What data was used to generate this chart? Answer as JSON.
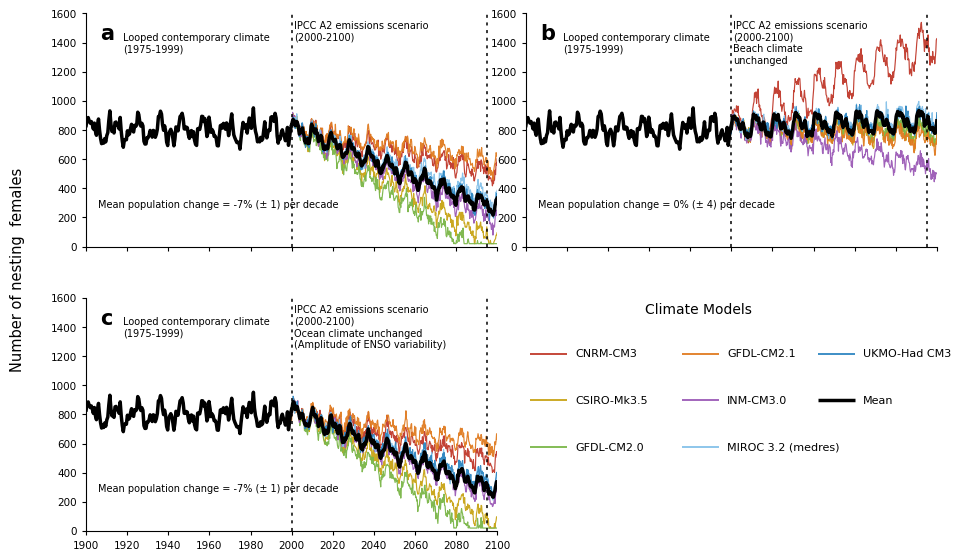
{
  "ylabel": "Number of nesting  females",
  "xlim": [
    1900,
    2100
  ],
  "ylim": [
    0,
    1600
  ],
  "yticks": [
    0,
    200,
    400,
    600,
    800,
    1000,
    1200,
    1400,
    1600
  ],
  "xticks": [
    1900,
    1920,
    1940,
    1960,
    1980,
    2000,
    2020,
    2040,
    2060,
    2080,
    2100
  ],
  "divider_year": 2000,
  "model_colors": {
    "CNRM-CM3": "#c0392b",
    "CSIRO-Mk3.5": "#c8a415",
    "GFDL-CM2.0": "#7ab648",
    "GFDL-CM2.1": "#e07b20",
    "INM-CM3.0": "#9b59b6",
    "MIROC 3.2 (medres)": "#85c1e9",
    "UKMO-Had CM3": "#2e86c1",
    "Mean": "#000000"
  },
  "panel_labels": [
    "a",
    "b",
    "c"
  ],
  "panel_annotations": [
    {
      "left_text": "Looped contemporary climate\n(1975-1999)",
      "right_text": "IPCC A2 emissions scenario\n(2000-2100)",
      "bottom_text": "Mean population change = -7% (± 1) per decade"
    },
    {
      "left_text": "Looped contemporary climate\n(1975-1999)",
      "right_text": "IPCC A2 emissions scenario\n(2000-2100)\nBeach climate\nunchanged",
      "bottom_text": "Mean population change = 0% (± 4) per decade"
    },
    {
      "left_text": "Looped contemporary climate\n(1975-1999)",
      "right_text": "IPCC A2 emissions scenario\n(2000-2100)\nOcean climate unchanged\n(Amplitude of ENSO variability)",
      "bottom_text": "Mean population change = -7% (± 1) per decade"
    }
  ],
  "legend_col1": [
    "CNRM-CM3",
    "CSIRO-Mk3.5",
    "GFDL-CM2.0"
  ],
  "legend_col2": [
    "GFDL-CM2.1",
    "INM-CM3.0",
    "MIROC 3.2 (medres)"
  ],
  "legend_col3": [
    "UKMO-Had CM3",
    "Mean",
    ""
  ]
}
